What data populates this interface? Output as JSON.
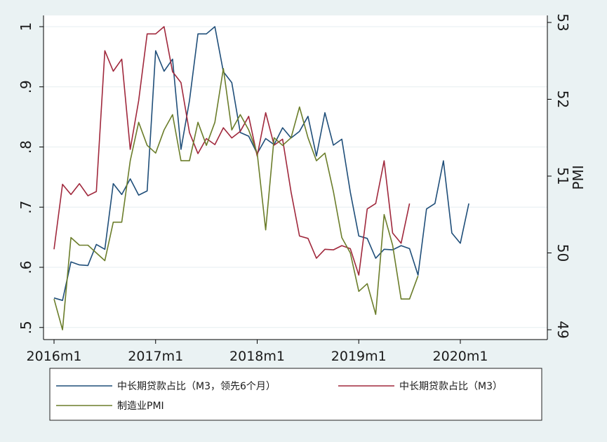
{
  "chart_data": {
    "type": "line",
    "x_tick_labels": [
      "2016m1",
      "2017m1",
      "2018m1",
      "2019m1",
      "2020m1"
    ],
    "x_tick_months": [
      0,
      12,
      24,
      36,
      48
    ],
    "x_range_months": [
      0,
      58
    ],
    "y_left": {
      "range": [
        0.49,
        1.01
      ],
      "ticks": [
        0.5,
        0.6,
        0.7,
        0.8,
        0.9,
        1.0
      ],
      "tick_labels": [
        ".5",
        ".6",
        ".7",
        ".8",
        ".9",
        "1"
      ]
    },
    "y_right": {
      "label": "PMI",
      "range": [
        48.95,
        53.05
      ],
      "ticks": [
        49,
        50,
        51,
        52,
        53
      ],
      "tick_labels": [
        "49",
        "50",
        "51",
        "52",
        "53"
      ]
    },
    "grid": "horizontal",
    "legend_position": "bottom",
    "series": [
      {
        "name": "中长期贷款占比（M3，领先6个月）",
        "axis": "left",
        "color": "#1f4e79",
        "start_month": 0,
        "values": [
          0.549,
          0.545,
          0.609,
          0.604,
          0.603,
          0.638,
          0.63,
          0.739,
          0.721,
          0.747,
          0.72,
          0.727,
          0.96,
          0.926,
          0.946,
          0.796,
          0.877,
          0.988,
          0.988,
          1.0,
          0.925,
          0.907,
          0.824,
          0.818,
          0.789,
          0.814,
          0.804,
          0.832,
          0.815,
          0.826,
          0.851,
          0.785,
          0.857,
          0.803,
          0.813,
          0.725,
          0.652,
          0.648,
          0.615,
          0.63,
          0.629,
          0.636,
          0.631,
          0.587,
          0.697,
          0.706,
          0.777,
          0.657,
          0.64,
          0.706
        ]
      },
      {
        "name": "中长期贷款占比（M3）",
        "axis": "left",
        "color": "#a0283c",
        "start_month": 0,
        "values": [
          0.63,
          0.738,
          0.721,
          0.739,
          0.719,
          0.726,
          0.96,
          0.926,
          0.946,
          0.796,
          0.877,
          0.988,
          0.988,
          1.0,
          0.925,
          0.907,
          0.824,
          0.789,
          0.814,
          0.804,
          0.832,
          0.815,
          0.826,
          0.851,
          0.785,
          0.857,
          0.803,
          0.813,
          0.725,
          0.652,
          0.648,
          0.615,
          0.63,
          0.629,
          0.636,
          0.631,
          0.587,
          0.697,
          0.706,
          0.777,
          0.657,
          0.64,
          0.706
        ]
      },
      {
        "name": "制造业PMI",
        "axis": "right",
        "color": "#6b7d2a",
        "start_month": 0,
        "values": [
          49.4,
          49.0,
          50.2,
          50.1,
          50.1,
          50.0,
          49.9,
          50.4,
          50.4,
          51.2,
          51.7,
          51.4,
          51.3,
          51.6,
          51.8,
          51.2,
          51.2,
          51.7,
          51.4,
          51.7,
          52.4,
          51.6,
          51.8,
          51.6,
          51.3,
          50.3,
          51.5,
          51.4,
          51.5,
          51.9,
          51.5,
          51.2,
          51.3,
          50.8,
          50.2,
          50.0,
          49.5,
          49.6,
          49.2,
          50.5,
          50.1,
          49.4,
          49.4,
          49.7
        ]
      }
    ]
  }
}
